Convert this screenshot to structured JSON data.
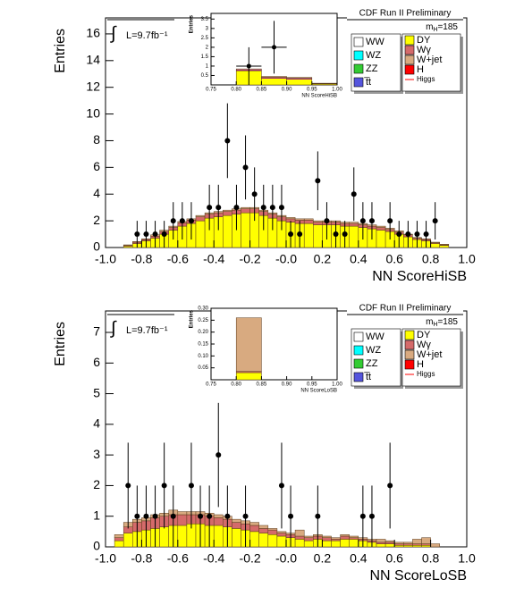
{
  "chart_data": [
    {
      "type": "histogram",
      "ylabel": "Entries",
      "xlabel": "NN ScoreHiSB",
      "header": "CDF Run II Preliminary",
      "lumi": "L=9.7fb⁻¹",
      "mass": {
        "symbol": "m",
        "sub": "H",
        "text": "=185"
      },
      "xlim": [
        -1,
        1
      ],
      "ylim": [
        0,
        17.2
      ],
      "xticks": [
        {
          "value": -1,
          "label": "-1.0"
        },
        -0.8,
        -0.6,
        -0.4,
        -0.2,
        {
          "value": 0,
          "label": "-0.0"
        },
        0.2,
        0.4,
        0.6,
        0.8,
        {
          "value": 1,
          "label": "1.0"
        }
      ],
      "yticks": [
        0,
        2,
        4,
        6,
        8,
        10,
        12,
        14,
        16
      ],
      "bins": [
        -1,
        -0.95,
        -0.9,
        -0.85,
        -0.8,
        -0.75,
        -0.7,
        -0.65,
        -0.6,
        -0.55,
        -0.5,
        -0.45,
        -0.4,
        -0.35,
        -0.3,
        -0.25,
        -0.2,
        -0.15,
        -0.1,
        -0.05,
        0,
        0.05,
        0.1,
        0.15,
        0.2,
        0.25,
        0.3,
        0.35,
        0.4,
        0.45,
        0.5,
        0.55,
        0.6,
        0.65,
        0.7,
        0.75,
        0.8,
        0.85,
        0.9,
        0.95,
        1
      ],
      "series": [
        {
          "name": "DY",
          "color": "#ffff00",
          "values": [
            0,
            0,
            0.1,
            0.3,
            0.5,
            0.7,
            1.0,
            1.3,
            1.6,
            1.8,
            2.0,
            2.2,
            2.3,
            2.4,
            2.5,
            2.6,
            2.6,
            2.4,
            2.2,
            2.0,
            1.9,
            1.8,
            1.8,
            1.7,
            1.7,
            1.7,
            1.6,
            1.6,
            1.5,
            1.4,
            1.3,
            1.2,
            1.0,
            0.8,
            0.6,
            0.5,
            0.3,
            0.15,
            0,
            0
          ]
        },
        {
          "name": "Wγ",
          "color": "#d46a6a",
          "values": [
            0,
            0,
            0.05,
            0.1,
            0.1,
            0.15,
            0.2,
            0.2,
            0.25,
            0.25,
            0.3,
            0.3,
            0.3,
            0.3,
            0.3,
            0.3,
            0.3,
            0.3,
            0.3,
            0.3,
            0.25,
            0.25,
            0.25,
            0.2,
            0.2,
            0.2,
            0.2,
            0.2,
            0.2,
            0.2,
            0.2,
            0.15,
            0.15,
            0.15,
            0.1,
            0.1,
            0.05,
            0.05,
            0,
            0
          ]
        },
        {
          "name": "W+jet",
          "color": "#d8aa80",
          "values": [
            0,
            0,
            0.05,
            0.05,
            0.05,
            0.1,
            0.1,
            0.1,
            0.1,
            0.1,
            0.1,
            0.1,
            0.1,
            0.1,
            0.1,
            0.1,
            0.1,
            0.1,
            0.1,
            0.1,
            0.1,
            0.1,
            0.1,
            0.1,
            0.1,
            0.1,
            0.1,
            0.1,
            0.1,
            0.1,
            0.1,
            0.1,
            0.1,
            0.05,
            0.05,
            0.05,
            0.05,
            0.05,
            0,
            0
          ]
        }
      ],
      "legend_other": [
        {
          "name": "WW",
          "color": "#ffffff"
        },
        {
          "name": "WZ",
          "color": "#00ffff"
        },
        {
          "name": "ZZ",
          "color": "#33cc33"
        },
        {
          "name": "t̅t",
          "color": "#5555dd"
        },
        {
          "name": "H",
          "color": "#ff0000"
        },
        {
          "name": "Higgs",
          "color": "#ff0000",
          "marker": "line"
        }
      ],
      "points": {
        "x": [
          -0.825,
          -0.775,
          -0.725,
          -0.675,
          -0.625,
          -0.575,
          -0.525,
          -0.425,
          -0.375,
          -0.325,
          -0.275,
          -0.225,
          -0.175,
          -0.125,
          -0.075,
          -0.025,
          0.025,
          0.075,
          0.175,
          0.225,
          0.275,
          0.325,
          0.375,
          0.425,
          0.475,
          0.575,
          0.625,
          0.675,
          0.725,
          0.775,
          0.825
        ],
        "values": [
          1,
          1,
          1,
          1,
          2,
          2,
          2,
          3,
          3,
          8,
          3,
          6,
          4,
          3,
          3,
          3,
          1,
          1,
          5,
          2,
          1,
          1,
          4,
          2,
          2,
          2,
          1,
          1,
          1,
          1,
          2
        ],
        "errors": [
          1,
          1,
          1,
          1,
          1.4,
          1.4,
          1.4,
          1.7,
          1.7,
          2.8,
          1.7,
          2.4,
          2,
          1.7,
          1.7,
          1.7,
          1,
          1,
          2.2,
          1.4,
          1,
          1,
          2,
          1.4,
          1.4,
          1.4,
          1,
          1,
          1,
          1,
          1.4
        ]
      },
      "inset": {
        "ylabel": "Entries",
        "xlabel": "NN ScoreHiSB",
        "xlim": [
          0.75,
          1
        ],
        "ylim": [
          0,
          3.8
        ],
        "xticks": [
          0.75,
          {
            "value": 0.8,
            "label": "0.80"
          },
          0.85,
          {
            "value": 0.9,
            "label": "0.90"
          },
          0.95,
          {
            "value": 1,
            "label": "1.00"
          }
        ],
        "yticks": [
          0.5,
          1,
          1.5,
          2,
          2.5,
          3,
          3.5
        ],
        "bins": [
          0.75,
          0.8,
          0.85,
          0.9,
          0.95,
          1
        ],
        "series": [
          {
            "color": "#ffff00",
            "values": [
              0,
              0.75,
              0.35,
              0.3,
              0.05
            ]
          },
          {
            "color": "#ee00ee",
            "values": [
              0,
              0.05,
              0.05,
              0.05,
              0.02
            ]
          },
          {
            "color": "#d8aa80",
            "values": [
              0,
              0.05,
              0.05,
              0.05,
              0.02
            ]
          }
        ],
        "points": {
          "x": [
            0.825,
            0.875
          ],
          "values": [
            1,
            2
          ],
          "errors": [
            1,
            1.4
          ]
        }
      }
    },
    {
      "type": "histogram",
      "ylabel": "Entries",
      "xlabel": "NN ScoreLoSB",
      "header": "CDF Run II Preliminary",
      "lumi": "L=9.7fb⁻¹",
      "mass": {
        "symbol": "m",
        "sub": "H",
        "text": "=185"
      },
      "xlim": [
        -1,
        1
      ],
      "ylim": [
        0,
        7.7
      ],
      "xticks": [
        {
          "value": -1,
          "label": "-1.0"
        },
        -0.8,
        -0.6,
        -0.4,
        -0.2,
        {
          "value": 0,
          "label": "-0.0"
        },
        0.2,
        0.4,
        0.6,
        0.8,
        {
          "value": 1,
          "label": "1.0"
        }
      ],
      "yticks": [
        0,
        1,
        2,
        3,
        4,
        5,
        6,
        7
      ],
      "bins": [
        -1,
        -0.95,
        -0.9,
        -0.85,
        -0.8,
        -0.75,
        -0.7,
        -0.65,
        -0.6,
        -0.55,
        -0.5,
        -0.45,
        -0.4,
        -0.35,
        -0.3,
        -0.25,
        -0.2,
        -0.15,
        -0.1,
        -0.05,
        0,
        0.05,
        0.1,
        0.15,
        0.2,
        0.25,
        0.3,
        0.35,
        0.4,
        0.45,
        0.5,
        0.55,
        0.6,
        0.65,
        0.7,
        0.75,
        0.8,
        0.85,
        0.9,
        0.95,
        1
      ],
      "series": [
        {
          "name": "DY",
          "color": "#ffff00",
          "values": [
            0,
            0.2,
            0.45,
            0.5,
            0.55,
            0.6,
            0.65,
            0.7,
            0.7,
            0.75,
            0.75,
            0.7,
            0.7,
            0.65,
            0.6,
            0.55,
            0.5,
            0.45,
            0.4,
            0.35,
            0.3,
            0.25,
            0.2,
            0.25,
            0.2,
            0.2,
            0.25,
            0.25,
            0.2,
            0.15,
            0.1,
            0.1,
            0.05,
            0.05,
            0.05,
            0.05,
            0,
            0,
            0,
            0
          ]
        },
        {
          "name": "Wγ",
          "color": "#d46a6a",
          "values": [
            0,
            0.1,
            0.2,
            0.3,
            0.3,
            0.35,
            0.35,
            0.35,
            0.35,
            0.3,
            0.3,
            0.3,
            0.25,
            0.25,
            0.2,
            0.2,
            0.2,
            0.15,
            0.15,
            0.1,
            0.1,
            0.1,
            0.1,
            0.1,
            0.1,
            0.05,
            0.1,
            0.05,
            0.05,
            0.05,
            0.05,
            0.05,
            0.05,
            0.05,
            0.05,
            0.05,
            0,
            0,
            0,
            0
          ]
        },
        {
          "name": "W+jet",
          "color": "#d8aa80",
          "values": [
            0,
            0.1,
            0.15,
            0.1,
            0.1,
            0.1,
            0.1,
            0.15,
            0.1,
            0.1,
            0.1,
            0.1,
            0.1,
            0.1,
            0.1,
            0.1,
            0.1,
            0.1,
            0.05,
            0.05,
            0.05,
            0.2,
            0.05,
            0.05,
            0.05,
            0.05,
            0.05,
            0.05,
            0.05,
            0.05,
            0.1,
            0.05,
            0.05,
            0.05,
            0.15,
            0.2,
            0.1,
            0,
            0,
            0
          ]
        }
      ],
      "legend_other": [
        {
          "name": "WW",
          "color": "#ffffff"
        },
        {
          "name": "WZ",
          "color": "#00ffff"
        },
        {
          "name": "ZZ",
          "color": "#33cc33"
        },
        {
          "name": "t̅t",
          "color": "#5555dd"
        },
        {
          "name": "H",
          "color": "#ff0000"
        },
        {
          "name": "Higgs",
          "color": "#ff0000",
          "marker": "line"
        }
      ],
      "points": {
        "x": [
          -0.875,
          -0.825,
          -0.775,
          -0.725,
          -0.675,
          -0.625,
          -0.525,
          -0.475,
          -0.425,
          -0.375,
          -0.325,
          -0.225,
          -0.025,
          0.025,
          0.175,
          0.425,
          0.475,
          0.575
        ],
        "values": [
          2,
          1,
          1,
          1,
          2,
          1,
          2,
          1,
          1,
          3,
          1,
          1,
          2,
          1,
          1,
          1,
          1,
          2
        ],
        "errors": [
          1.4,
          1,
          1,
          1,
          1.4,
          1,
          1.4,
          1,
          1,
          1.7,
          1,
          1,
          1.4,
          1,
          1,
          1,
          1,
          1.4
        ]
      },
      "inset": {
        "ylabel": "Entries",
        "xlabel": "NN ScoreLoSB",
        "xlim": [
          0.75,
          1
        ],
        "ylim": [
          0,
          0.3
        ],
        "xticks": [
          0.75,
          {
            "value": 0.8,
            "label": "0.80"
          },
          0.85,
          {
            "value": 0.9,
            "label": "0.90"
          },
          0.95,
          {
            "value": 1,
            "label": "1.00"
          }
        ],
        "yticks": [
          {
            "value": 0.05,
            "label": "0.05"
          },
          {
            "value": 0.1,
            "label": "0.10"
          },
          {
            "value": 0.15,
            "label": "0.15"
          },
          {
            "value": 0.2,
            "label": "0.20"
          },
          {
            "value": 0.25,
            "label": "0.25"
          },
          {
            "value": 0.3,
            "label": "0.30"
          }
        ],
        "bins": [
          0.75,
          0.8,
          0.85,
          0.9,
          0.95,
          1
        ],
        "series": [
          {
            "color": "#ffff00",
            "values": [
              0,
              0.03,
              0,
              0,
              0
            ]
          },
          {
            "color": "#d46a6a",
            "values": [
              0,
              0.005,
              0,
              0,
              0
            ]
          },
          {
            "color": "#d8aa80",
            "values": [
              0,
              0.225,
              0,
              0,
              0
            ]
          }
        ]
      }
    }
  ]
}
